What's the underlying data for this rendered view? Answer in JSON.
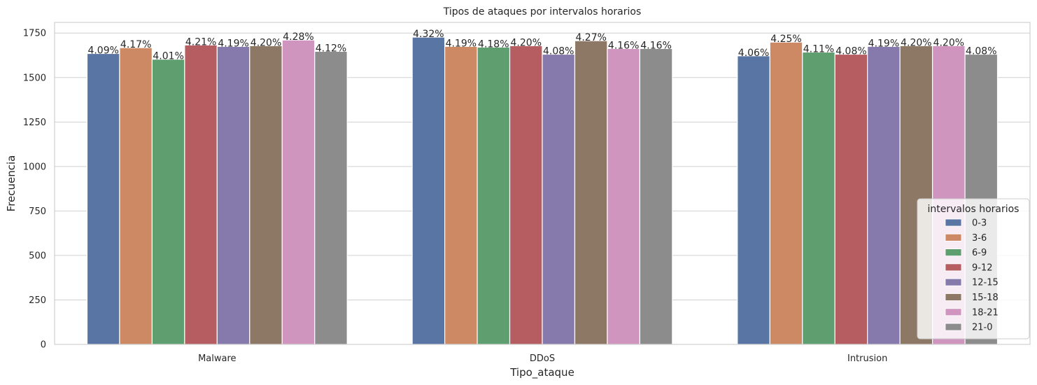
{
  "chart_data": {
    "type": "bar",
    "title": "Tipos de ataques por intervalos horarios",
    "xlabel": "Tipo_ataque",
    "ylabel": "Frecuencia",
    "categories": [
      "Malware",
      "DDoS",
      "Intrusion"
    ],
    "ylim": [
      0,
      1810
    ],
    "yticks": [
      "0",
      "250",
      "500",
      "750",
      "1000",
      "1250",
      "1500",
      "1750"
    ],
    "grid": "horizontal",
    "legend": {
      "title": "intervalos horarios",
      "position": "lower-right"
    },
    "series": [
      {
        "name": "0-3",
        "color": "#5875a4",
        "values": [
          1635,
          1727,
          1622
        ],
        "labels": [
          "4.09%",
          "4.32%",
          "4.06%"
        ]
      },
      {
        "name": "3-6",
        "color": "#cc8963",
        "values": [
          1668,
          1675,
          1699
        ],
        "labels": [
          "4.17%",
          "4.19%",
          "4.25%"
        ]
      },
      {
        "name": "6-9",
        "color": "#5f9e6e",
        "values": [
          1603,
          1671,
          1643
        ],
        "labels": [
          "4.01%",
          "4.18%",
          "4.11%"
        ]
      },
      {
        "name": "9-12",
        "color": "#b55d60",
        "values": [
          1683,
          1679,
          1631
        ],
        "labels": [
          "4.21%",
          "4.20%",
          "4.08%"
        ]
      },
      {
        "name": "12-15",
        "color": "#857aab",
        "values": [
          1675,
          1631,
          1675
        ],
        "labels": [
          "4.19%",
          "4.08%",
          "4.19%"
        ]
      },
      {
        "name": "15-18",
        "color": "#8d7866",
        "values": [
          1679,
          1707,
          1679
        ],
        "labels": [
          "4.20%",
          "4.27%",
          "4.20%"
        ]
      },
      {
        "name": "18-21",
        "color": "#d095bf",
        "values": [
          1711,
          1663,
          1679
        ],
        "labels": [
          "4.28%",
          "4.16%",
          "4.20%"
        ]
      },
      {
        "name": "21-0",
        "color": "#8c8c8c",
        "values": [
          1647,
          1663,
          1631
        ],
        "labels": [
          "4.12%",
          "4.16%",
          "4.08%"
        ]
      }
    ]
  }
}
